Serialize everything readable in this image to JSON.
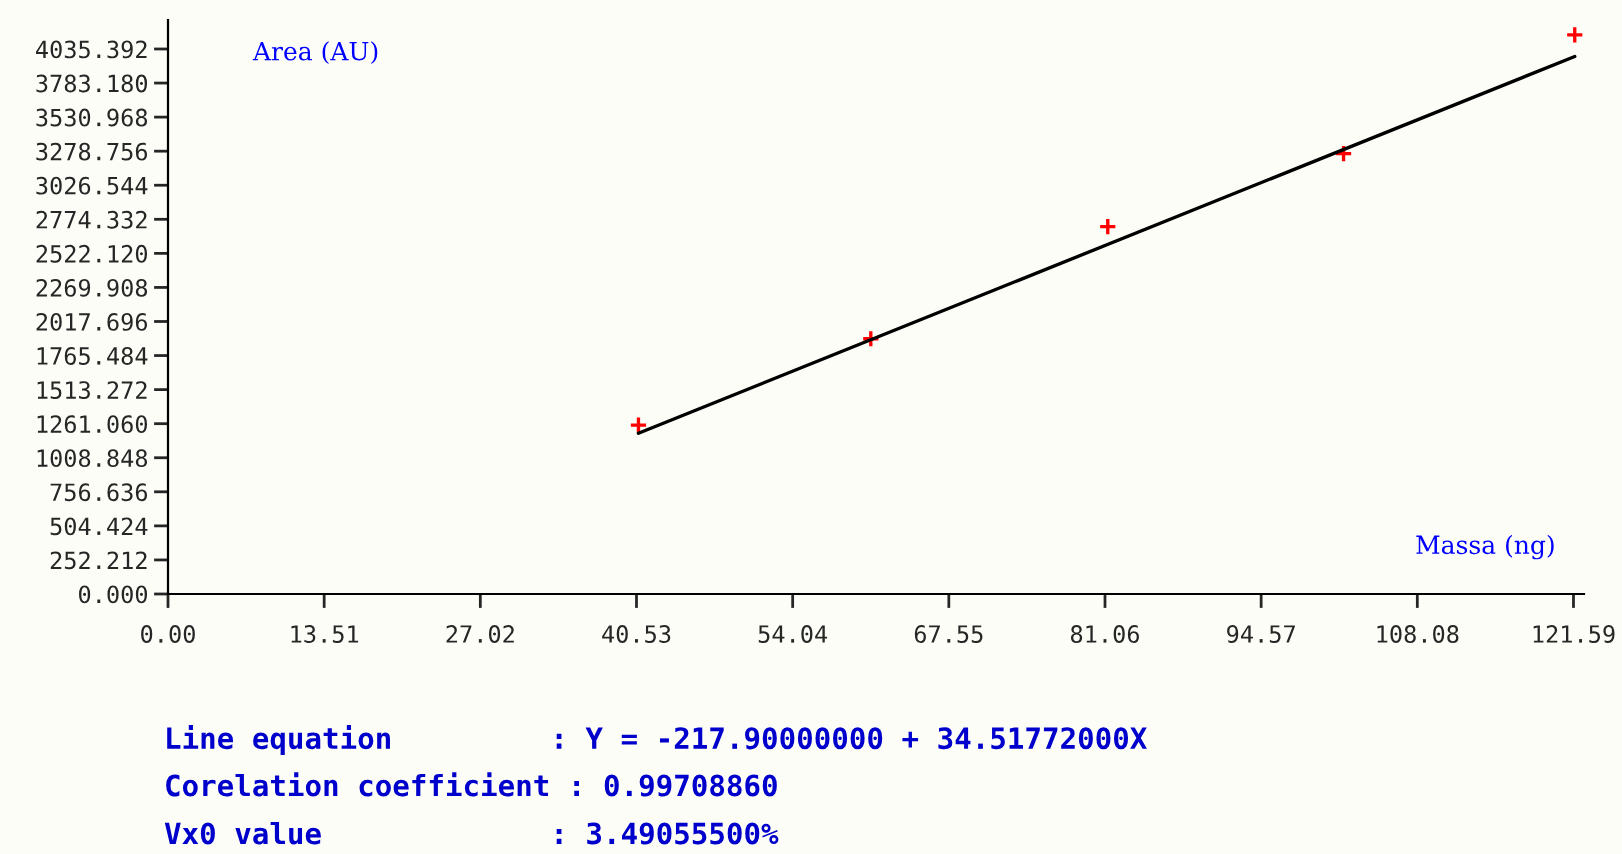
{
  "chart_data": {
    "type": "scatter",
    "xlabel": "Massa (ng)",
    "ylabel": "Area (AU)",
    "series": [
      {
        "color": "#ff0000",
        "marker": "cross",
        "x": [
          40.7,
          60.8,
          81.3,
          101.7,
          121.7
        ],
        "values": [
          1250,
          1890,
          2720,
          3260,
          4140
        ]
      },
      {
        "type": "line",
        "color": "#000000",
        "marker": "none",
        "line_style": "solid",
        "x": [
          40.7,
          121.7
        ],
        "values": [
          1190,
          3980
        ]
      }
    ],
    "xlim": [
      0,
      122.5
    ],
    "ylim": [
      0,
      4250
    ],
    "xticks": [
      {
        "value": 0,
        "label": "0.00"
      },
      {
        "value": 13.51,
        "label": "13.51"
      },
      {
        "value": 27.02,
        "label": "27.02"
      },
      {
        "value": 40.53,
        "label": "40.53"
      },
      {
        "value": 54.04,
        "label": "54.04"
      },
      {
        "value": 67.55,
        "label": "67.55"
      },
      {
        "value": 81.06,
        "label": "81.06"
      },
      {
        "value": 94.57,
        "label": "94.57"
      },
      {
        "value": 108.08,
        "label": "108.08"
      },
      {
        "value": 121.59,
        "label": "121.59"
      }
    ],
    "yticks": [
      {
        "value": 0,
        "label": "0.000"
      },
      {
        "value": 252.212,
        "label": "252.212"
      },
      {
        "value": 504.424,
        "label": "504.424"
      },
      {
        "value": 756.636,
        "label": "756.636"
      },
      {
        "value": 1008.848,
        "label": "1008.848"
      },
      {
        "value": 1261.06,
        "label": "1261.060"
      },
      {
        "value": 1513.272,
        "label": "1513.272"
      },
      {
        "value": 1765.484,
        "label": "1765.484"
      },
      {
        "value": 2017.696,
        "label": "2017.696"
      },
      {
        "value": 2269.908,
        "label": "2269.908"
      },
      {
        "value": 2522.12,
        "label": "2522.120"
      },
      {
        "value": 2774.332,
        "label": "2774.332"
      },
      {
        "value": 3026.544,
        "label": "3026.544"
      },
      {
        "value": 3278.756,
        "label": "3278.756"
      },
      {
        "value": 3530.968,
        "label": "3530.968"
      },
      {
        "value": 3783.18,
        "label": "3783.180"
      },
      {
        "value": 4035.392,
        "label": "4035.392"
      }
    ],
    "grid": false,
    "annotations": [
      "Line equation         : Y = -217.90000000 + 34.51772000X",
      "Corelation coefficient : 0.99708860",
      "Vx0 value             : 3.49055500%"
    ]
  }
}
